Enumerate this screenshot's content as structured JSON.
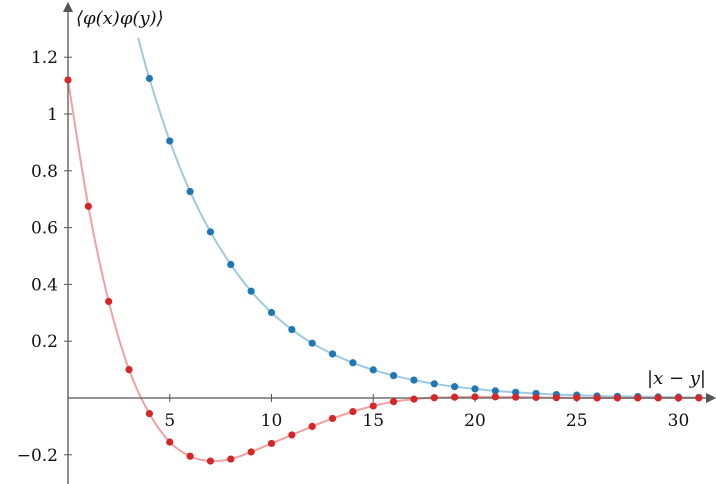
{
  "chart_data": {
    "type": "scatter",
    "xlabel": "|x − y|",
    "ylabel": "⟨φ(x)φ(y)⟩",
    "xlim": [
      0,
      32
    ],
    "ylim": [
      -0.28,
      1.3
    ],
    "x_ticks": [
      5,
      10,
      15,
      20,
      25,
      30
    ],
    "y_ticks": [
      -0.2,
      0.2,
      0.4,
      0.6,
      0.8,
      1,
      1.2
    ],
    "x_tick_labels": [
      "5",
      "10",
      "15",
      "20",
      "25",
      "30"
    ],
    "y_tick_labels": [
      "−0.2",
      "0.2",
      "0.4",
      "0.6",
      "0.8",
      "1",
      "1.2"
    ],
    "grid": false,
    "series": [
      {
        "color": "#1f77b4",
        "curve_color": "#9ecae1",
        "x": [
          4,
          5,
          6,
          7,
          8,
          9,
          10,
          11,
          12,
          13,
          14,
          15,
          16,
          17,
          18,
          19,
          20,
          21,
          22,
          23,
          24,
          25,
          26,
          27,
          28,
          29,
          30,
          31
        ],
        "y": [
          1.125,
          0.905,
          0.727,
          0.585,
          0.47,
          0.376,
          0.301,
          0.241,
          0.193,
          0.155,
          0.124,
          0.099,
          0.079,
          0.063,
          0.05,
          0.04,
          0.032,
          0.025,
          0.02,
          0.016,
          0.012,
          0.01,
          0.007,
          0.006,
          0.005,
          0.004,
          0.003,
          0.002
        ]
      },
      {
        "color": "#d62728",
        "curve_color": "#f4a0a0",
        "x": [
          0,
          1,
          2,
          3,
          4,
          5,
          6,
          7,
          8,
          9,
          10,
          11,
          12,
          13,
          14,
          15,
          16,
          17,
          18,
          19,
          20,
          21,
          22,
          23,
          24,
          25,
          26,
          27,
          28,
          29,
          30,
          31
        ],
        "y": [
          1.12,
          0.675,
          0.34,
          0.1,
          -0.055,
          -0.155,
          -0.205,
          -0.222,
          -0.215,
          -0.19,
          -0.16,
          -0.13,
          -0.1,
          -0.072,
          -0.048,
          -0.028,
          -0.013,
          -0.004,
          0.001,
          0.003,
          0.004,
          0.004,
          0.003,
          0.002,
          0.001,
          0.001,
          0.0,
          0.0,
          0.0,
          0.0,
          0.0,
          0.0
        ]
      }
    ]
  }
}
